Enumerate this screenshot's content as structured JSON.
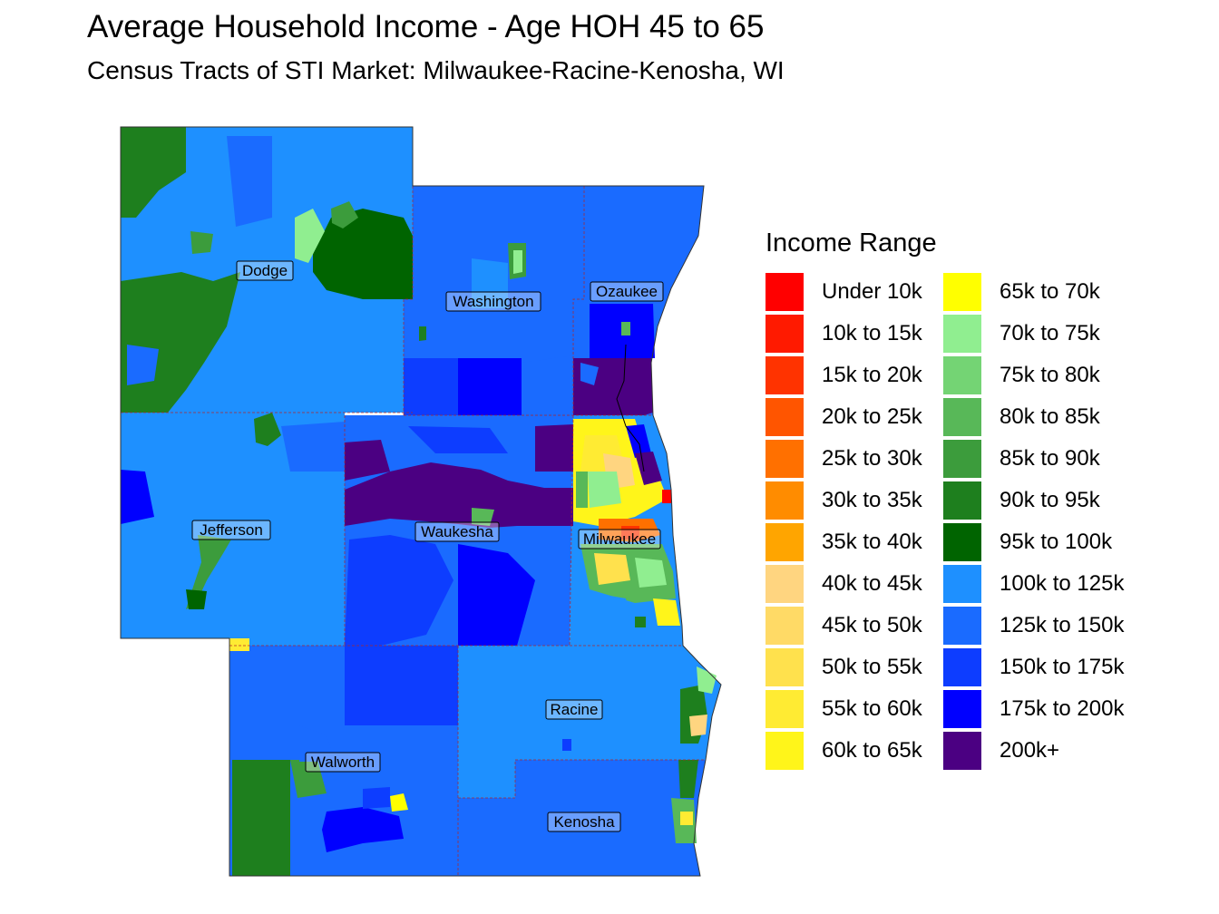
{
  "title": "Average Household Income - Age HOH 45 to 65",
  "subtitle": "Census Tracts of STI Market: Milwaukee-Racine-Kenosha, WI",
  "legend": {
    "title": "Income Range",
    "items": [
      {
        "label": "Under 10k",
        "color": "#FF0000"
      },
      {
        "label": "10k to 15k",
        "color": "#FF1A00"
      },
      {
        "label": "15k to 20k",
        "color": "#FF3300"
      },
      {
        "label": "20k to 25k",
        "color": "#FF5500"
      },
      {
        "label": "25k to 30k",
        "color": "#FF7000"
      },
      {
        "label": "30k to 35k",
        "color": "#FF8C00"
      },
      {
        "label": "35k to 40k",
        "color": "#FFA500"
      },
      {
        "label": "40k to 45k",
        "color": "#FFD580"
      },
      {
        "label": "45k to 50k",
        "color": "#FFDA66"
      },
      {
        "label": "50k to 55k",
        "color": "#FFE14D"
      },
      {
        "label": "55k to 60k",
        "color": "#FFEB33"
      },
      {
        "label": "60k to 65k",
        "color": "#FFF51A"
      },
      {
        "label": "65k to 70k",
        "color": "#FFFF00"
      },
      {
        "label": "70k to 75k",
        "color": "#90EE90"
      },
      {
        "label": "75k to 80k",
        "color": "#74D474"
      },
      {
        "label": "80k to 85k",
        "color": "#58B858"
      },
      {
        "label": "85k to 90k",
        "color": "#3C9C3C"
      },
      {
        "label": "90k to 95k",
        "color": "#1E7F1E"
      },
      {
        "label": "95k to 100k",
        "color": "#006400"
      },
      {
        "label": "100k to 125k",
        "color": "#1E90FF"
      },
      {
        "label": "125k to 150k",
        "color": "#1A6BFF"
      },
      {
        "label": "150k to 175k",
        "color": "#0D3DFF"
      },
      {
        "label": "175k to 200k",
        "color": "#0000FF"
      },
      {
        "label": "200k+",
        "color": "#4B0082"
      }
    ]
  },
  "counties": [
    {
      "name": "Dodge"
    },
    {
      "name": "Washington"
    },
    {
      "name": "Ozaukee"
    },
    {
      "name": "Jefferson"
    },
    {
      "name": "Waukesha"
    },
    {
      "name": "Milwaukee"
    },
    {
      "name": "Racine"
    },
    {
      "name": "Walworth"
    },
    {
      "name": "Kenosha"
    }
  ]
}
